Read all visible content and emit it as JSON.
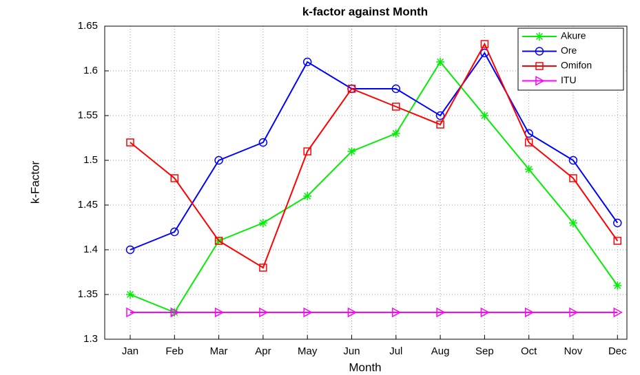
{
  "chart_data": {
    "type": "line",
    "title": "k-factor against Month",
    "x_label": "Month",
    "y_label": "k-Factor",
    "categories": [
      "Jan",
      "Feb",
      "Mar",
      "Apr",
      "May",
      "Jun",
      "Jul",
      "Aug",
      "Sep",
      "Oct",
      "Nov",
      "Dec"
    ],
    "series": [
      {
        "name": "Akure",
        "color": "#00ee00",
        "marker": "asterisk",
        "values": [
          1.35,
          1.33,
          1.41,
          1.43,
          1.46,
          1.51,
          1.53,
          1.61,
          1.55,
          1.49,
          1.43,
          1.36
        ]
      },
      {
        "name": "Ore",
        "color": "#0000ff",
        "marker": "circle",
        "values": [
          1.4,
          1.42,
          1.5,
          1.52,
          1.61,
          1.58,
          1.58,
          1.55,
          1.62,
          1.53,
          1.5,
          1.43
        ]
      },
      {
        "name": "Omifon",
        "color": "#ff0000",
        "marker": "square",
        "values": [
          1.52,
          1.48,
          1.41,
          1.38,
          1.51,
          1.58,
          1.56,
          1.54,
          1.63,
          1.52,
          1.48,
          1.41
        ]
      },
      {
        "name": "ITU",
        "color": "#ff00ff",
        "marker": "triangle",
        "values": [
          1.33,
          1.33,
          1.33,
          1.33,
          1.33,
          1.33,
          1.33,
          1.33,
          1.33,
          1.33,
          1.33,
          1.33
        ]
      }
    ],
    "ylim": [
      1.3,
      1.65
    ],
    "yticks": [
      1.3,
      1.35,
      1.4,
      1.45,
      1.5,
      1.55,
      1.6,
      1.65
    ],
    "grid": true,
    "legend": "top-right"
  }
}
